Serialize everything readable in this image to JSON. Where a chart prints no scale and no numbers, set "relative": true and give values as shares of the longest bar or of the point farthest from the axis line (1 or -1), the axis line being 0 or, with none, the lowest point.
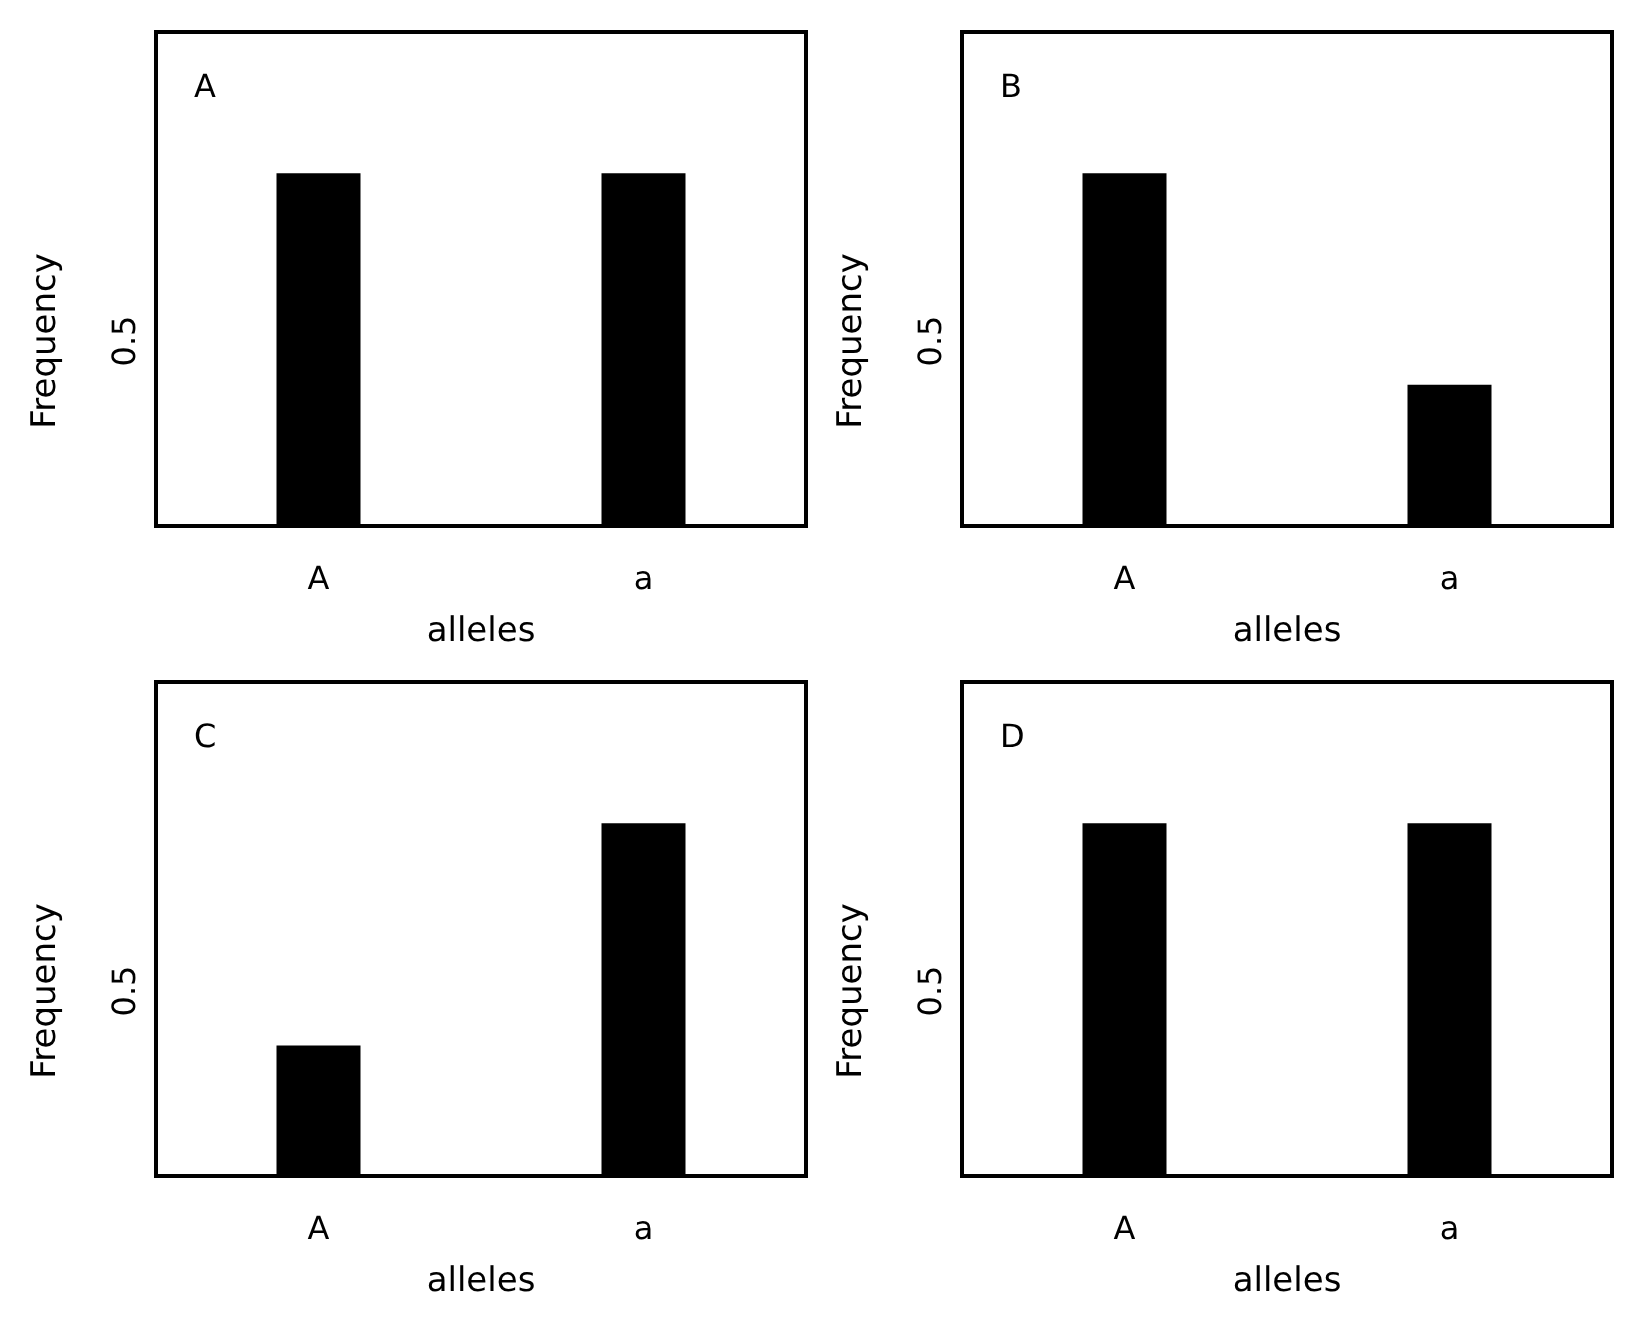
{
  "chart_data": [
    {
      "type": "bar",
      "title": "A",
      "xlabel": "alleles",
      "ylabel": "Frequency",
      "categories": [
        "A",
        "a"
      ],
      "relative": true,
      "values": [
        1,
        1
      ],
      "color": "#000000",
      "annotations": [
        "0.5"
      ]
    },
    {
      "type": "bar",
      "title": "B",
      "xlabel": "alleles",
      "ylabel": "Frequency",
      "categories": [
        "A",
        "a"
      ],
      "relative": true,
      "values": [
        1,
        0.4
      ],
      "color": "#000000",
      "annotations": [
        "0.5"
      ]
    },
    {
      "type": "bar",
      "title": "C",
      "xlabel": "alleles",
      "ylabel": "Frequency",
      "categories": [
        "A",
        "a"
      ],
      "relative": true,
      "values": [
        0.37,
        1
      ],
      "color": "#000000",
      "annotations": [
        "0.5"
      ]
    },
    {
      "type": "bar",
      "title": "D",
      "xlabel": "alleles",
      "ylabel": "Frequency",
      "categories": [
        "A",
        "a"
      ],
      "relative": true,
      "values": [
        1,
        1
      ],
      "color": "#000000",
      "annotations": [
        "0.5"
      ]
    }
  ]
}
